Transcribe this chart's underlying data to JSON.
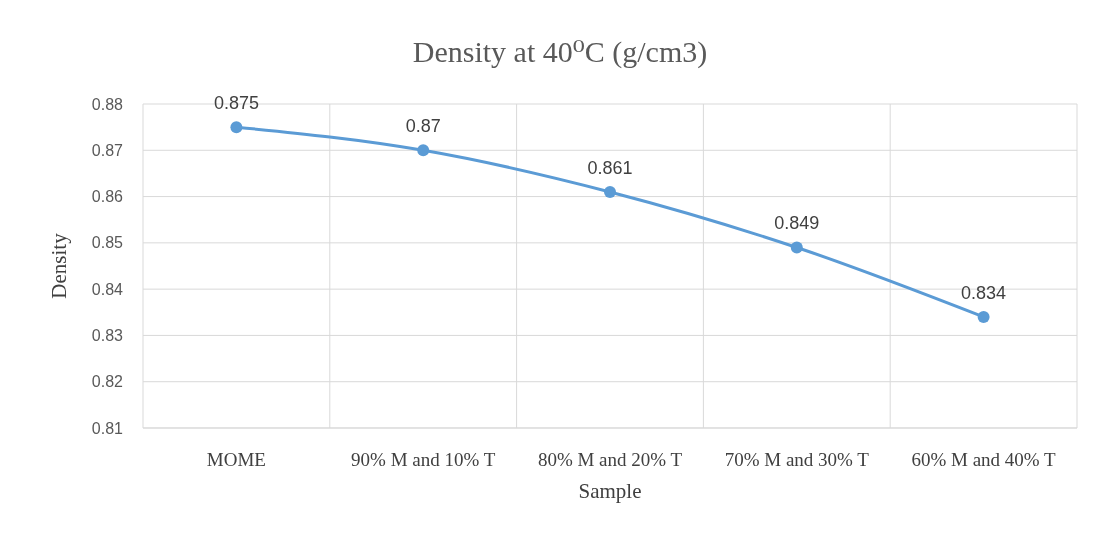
{
  "chart_data": {
    "type": "line",
    "title": "Density at 40⁰C (g/cm3)",
    "xlabel": "Sample",
    "ylabel": "Density",
    "categories": [
      "MOME",
      "90% M and 10% T",
      "80% M and 20% T",
      "70% M and 30% T",
      "60% M and 40% T"
    ],
    "series": [
      {
        "color": "#5b9bd5",
        "values": [
          0.875,
          0.87,
          0.861,
          0.849,
          0.834
        ]
      }
    ],
    "ylim": [
      0.81,
      0.88
    ],
    "yticks": [
      {
        "value": 0.81,
        "label": "0.81"
      },
      {
        "value": 0.82,
        "label": "0.82"
      },
      {
        "value": 0.83,
        "label": "0.83"
      },
      {
        "value": 0.84,
        "label": "0.84"
      },
      {
        "value": 0.85,
        "label": "0.85"
      },
      {
        "value": 0.86,
        "label": "0.86"
      },
      {
        "value": 0.87,
        "label": "0.87"
      },
      {
        "value": 0.88,
        "label": "0.88"
      }
    ],
    "grid": true,
    "data_labels": true,
    "marker": "circle"
  }
}
